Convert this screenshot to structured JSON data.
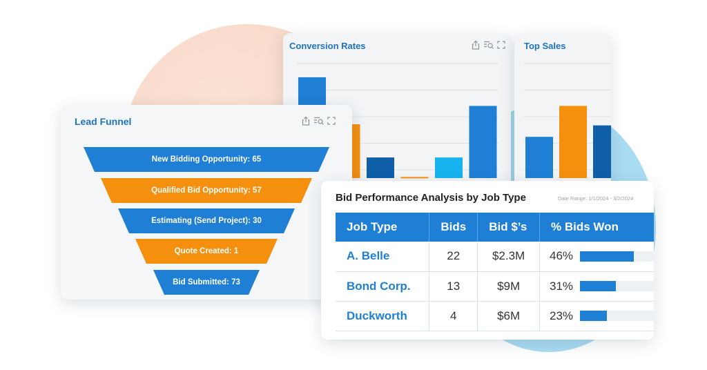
{
  "conversion": {
    "title": "Conversion Rates",
    "bar_colors": [
      "#1e7fd4",
      "#f5900f",
      "#0e5fa8",
      "#f5900f",
      "#16b3ee",
      "#1e7fd4"
    ],
    "bar_levels": [
      0.88,
      0.47,
      0.18,
      0.01,
      0.18,
      0.63
    ]
  },
  "top_sales": {
    "title": "Top Sales",
    "bar_colors": [
      "#1e7fd4",
      "#f5900f",
      "#0e5fa8"
    ],
    "bar_levels": [
      0.36,
      0.63,
      0.46
    ]
  },
  "lead_funnel": {
    "title": "Lead Funnel",
    "stages": [
      {
        "label": "New Bidding Opportunity: 65",
        "color": "#1e7fd4"
      },
      {
        "label": "Qualified Bid Opportunity: 57",
        "color": "#f5900f"
      },
      {
        "label": "Estimating (Send Project): 30",
        "color": "#1e7fd4"
      },
      {
        "label": "Quote Created: 1",
        "color": "#f5900f"
      },
      {
        "label": "Bid Submitted: 73",
        "color": "#1e7fd4"
      }
    ]
  },
  "bid_performance": {
    "title": "Bid Performance Analysis by Job Type",
    "date_range": "Date Range: 1/1/2024 - 3/2/2024",
    "columns": [
      "Job Type",
      "Bids",
      "Bid $’s",
      "% Bids Won"
    ],
    "rows": [
      {
        "job_type": "A. Belle",
        "bids": "22",
        "bid_dollars": "$2.3M",
        "pct_won": "46%",
        "won_fraction": 0.46
      },
      {
        "job_type": "Bond Corp.",
        "bids": "13",
        "bid_dollars": "$9M",
        "pct_won": "31%",
        "won_fraction": 0.31
      },
      {
        "job_type": "Duckworth",
        "bids": "4",
        "bid_dollars": "$6M",
        "pct_won": "23%",
        "won_fraction": 0.23
      }
    ]
  },
  "icons": [
    "share-icon",
    "filter-search-icon",
    "expand-icon"
  ]
}
